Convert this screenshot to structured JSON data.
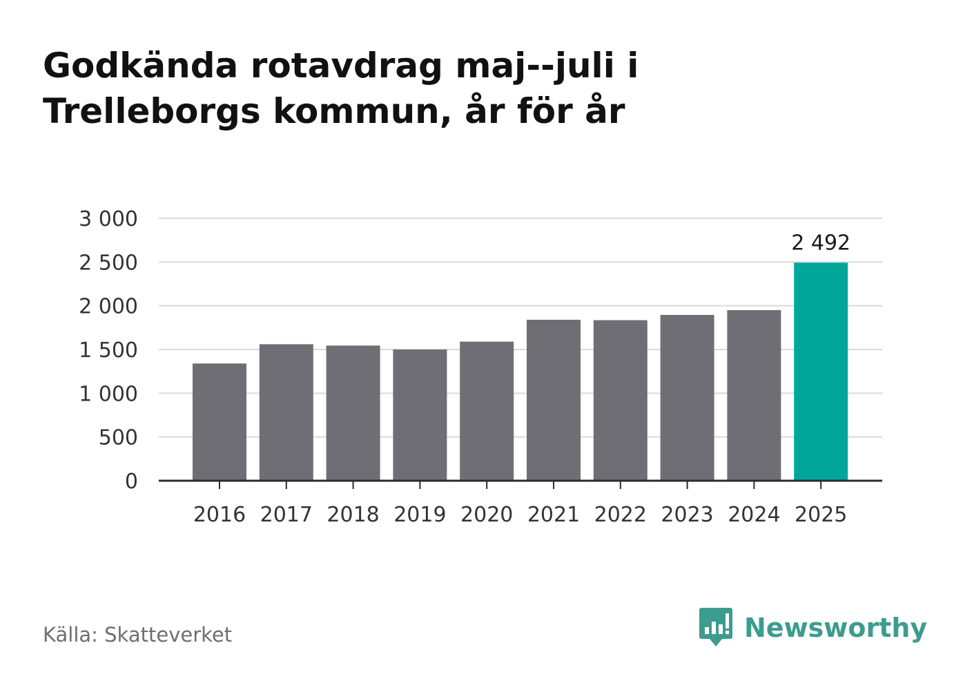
{
  "title": "Godkända rotavdrag maj--juli i Trelleborgs kommun, år för år",
  "source": "Källa: Skatteverket",
  "brand": "Newsworthy",
  "colors": {
    "bar": "#6f6e74",
    "highlight": "#00a69a",
    "grid": "#d9d9d9",
    "axis": "#2b2b2b",
    "brand": "#3c9c8f"
  },
  "chart_data": {
    "type": "bar",
    "categories": [
      "2016",
      "2017",
      "2018",
      "2019",
      "2020",
      "2021",
      "2022",
      "2023",
      "2024",
      "2025"
    ],
    "values": [
      1340,
      1560,
      1545,
      1500,
      1590,
      1840,
      1835,
      1895,
      1950,
      2492
    ],
    "highlight_index": 9,
    "data_labels": [
      {
        "index": 9,
        "text": "2 492"
      }
    ],
    "yticks": [
      0,
      500,
      1000,
      1500,
      2000,
      2500,
      3000
    ],
    "ytick_labels": [
      "0",
      "500",
      "1 000",
      "1 500",
      "2 000",
      "2 500",
      "3 000"
    ],
    "ylim": [
      0,
      3000
    ],
    "grid": true,
    "legend": "none",
    "title": "Godkända rotavdrag maj--juli i Trelleborgs kommun, år för år",
    "xlabel": "",
    "ylabel": ""
  }
}
